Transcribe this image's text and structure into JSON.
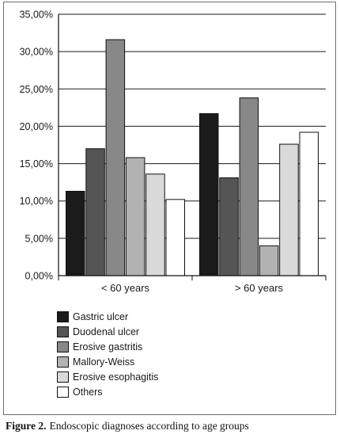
{
  "chart_data": {
    "type": "bar",
    "categories": [
      "< 60 years",
      "> 60 years"
    ],
    "series": [
      {
        "name": "Gastric ulcer",
        "color": "#1b1b1b",
        "values": [
          11.3,
          21.7
        ]
      },
      {
        "name": "Duodenal ulcer",
        "color": "#555555",
        "values": [
          17.0,
          13.1
        ]
      },
      {
        "name": "Erosive gastritis",
        "color": "#888888",
        "values": [
          31.6,
          23.8
        ]
      },
      {
        "name": "Mallory-Weiss",
        "color": "#b2b2b2",
        "values": [
          15.8,
          4.0
        ]
      },
      {
        "name": "Erosive esophagitis",
        "color": "#dadada",
        "values": [
          13.6,
          17.6
        ]
      },
      {
        "name": "Others",
        "color": "#ffffff",
        "values": [
          10.2,
          19.2
        ]
      }
    ],
    "ylim": [
      0,
      35
    ],
    "yticks": [
      0,
      5,
      10,
      15,
      20,
      25,
      30,
      35
    ],
    "ytick_labels": [
      "0,00%",
      "5,00%",
      "10,00%",
      "15,00%",
      "20,00%",
      "25,00%",
      "30,00%",
      "35,00%"
    ],
    "grid": true,
    "legend_position": "bottom-left"
  },
  "caption": {
    "lead": "Figure 2.",
    "text": "Endoscopic diagnoses according to age groups"
  }
}
